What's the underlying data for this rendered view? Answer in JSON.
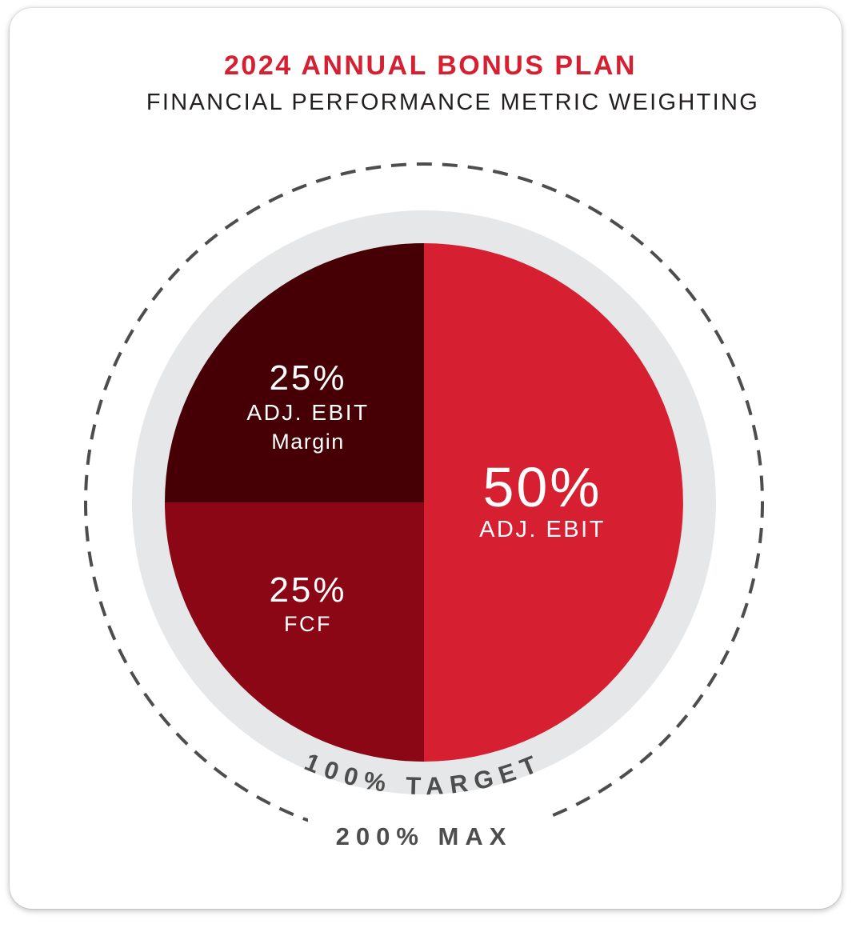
{
  "chart_data": {
    "type": "pie",
    "title": "2024 ANNUAL BONUS PLAN",
    "subtitle": "FINANCIAL PERFORMANCE METRIC WEIGHTING",
    "slices": [
      {
        "label": "ADJ. EBIT",
        "value": 50,
        "value_label": "50%",
        "color": "#d71f32"
      },
      {
        "label": "FCF",
        "value": 25,
        "value_label": "25%",
        "color": "#8b0716"
      },
      {
        "label_line1": "ADJ. EBIT",
        "label_line2": "Margin",
        "value": 25,
        "value_label": "25%",
        "color": "#460005"
      }
    ],
    "target_label": "100% TARGET",
    "max_label": "200% MAX",
    "colors": {
      "title": "#d71f32",
      "subtitle": "#231f20",
      "ring": "#e6e7e8",
      "dash": "#4d4d4d",
      "annotation": "#4d4d4d",
      "slice_text": "#ffffff"
    }
  }
}
